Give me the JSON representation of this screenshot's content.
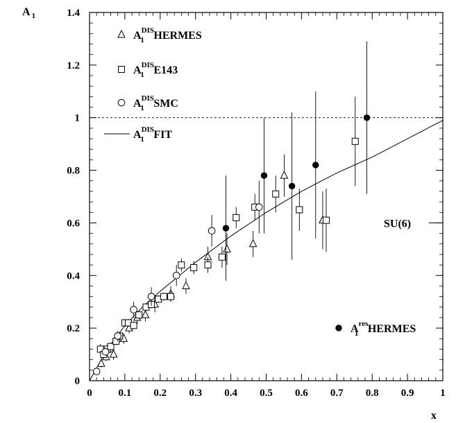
{
  "chart_data": {
    "type": "scatter",
    "title": "",
    "xlabel": "x",
    "ylabel": "A",
    "ylabel_sub": "1",
    "xlim": [
      0,
      1
    ],
    "ylim": [
      0,
      1.4
    ],
    "x_ticks": [
      0,
      0.1,
      0.2,
      0.3,
      0.4,
      0.5,
      0.6,
      0.7,
      0.8,
      0.9,
      1
    ],
    "x_tick_labels": [
      "0",
      "0.1",
      "0.2",
      "0.3",
      "0.4",
      "0.5",
      "0.6",
      "0.7",
      "0.8",
      "0.9",
      "1"
    ],
    "y_ticks": [
      0,
      0.2,
      0.4,
      0.6,
      0.8,
      1,
      1.2,
      1.4
    ],
    "y_tick_labels": [
      "0",
      "0.2",
      "0.4",
      "0.6",
      "0.8",
      "1",
      "1.2",
      "1.4"
    ],
    "reference_line": {
      "y": 1.0,
      "style": "dashed"
    },
    "annotation": {
      "text": "SU(6)",
      "y": 0.6
    },
    "legend": [
      {
        "series": "hermes_dis",
        "marker": "triangle",
        "main": "A",
        "sub": "1",
        "sup": "DIS",
        "name": "HERMES"
      },
      {
        "series": "e143",
        "marker": "square",
        "main": "A",
        "sub": "1",
        "sup": "DIS",
        "name": "E143"
      },
      {
        "series": "smc",
        "marker": "circle",
        "main": "A",
        "sub": "1",
        "sup": "DIS",
        "name": "SMC"
      },
      {
        "series": "fit",
        "marker": "line",
        "main": "A",
        "sub": "1",
        "sup": "DIS",
        "name": "FIT"
      },
      {
        "series": "hermes_res",
        "marker": "filled-circle",
        "main": "A",
        "sub": "1",
        "sup": "res",
        "name": "HERMES"
      }
    ],
    "series": [
      {
        "id": "hermes_dis",
        "marker": "triangle",
        "points": [
          {
            "x": 0.033,
            "y": 0.065,
            "err": 0.015
          },
          {
            "x": 0.047,
            "y": 0.09,
            "err": 0.015
          },
          {
            "x": 0.058,
            "y": 0.12,
            "err": 0.015
          },
          {
            "x": 0.068,
            "y": 0.1,
            "err": 0.02
          },
          {
            "x": 0.082,
            "y": 0.16,
            "err": 0.02
          },
          {
            "x": 0.097,
            "y": 0.16,
            "err": 0.02
          },
          {
            "x": 0.112,
            "y": 0.2,
            "err": 0.02
          },
          {
            "x": 0.135,
            "y": 0.24,
            "err": 0.025
          },
          {
            "x": 0.158,
            "y": 0.25,
            "err": 0.025
          },
          {
            "x": 0.185,
            "y": 0.29,
            "err": 0.03
          },
          {
            "x": 0.23,
            "y": 0.33,
            "err": 0.03
          },
          {
            "x": 0.273,
            "y": 0.36,
            "err": 0.03
          },
          {
            "x": 0.335,
            "y": 0.47,
            "err": 0.04
          },
          {
            "x": 0.389,
            "y": 0.5,
            "err": 0.06
          },
          {
            "x": 0.463,
            "y": 0.52,
            "err": 0.05
          },
          {
            "x": 0.551,
            "y": 0.78,
            "err": 0.08
          },
          {
            "x": 0.66,
            "y": 0.61,
            "err": 0.11
          }
        ]
      },
      {
        "id": "e143",
        "marker": "square",
        "points": [
          {
            "x": 0.031,
            "y": 0.12,
            "err": 0.02
          },
          {
            "x": 0.04,
            "y": 0.1,
            "err": 0.015
          },
          {
            "x": 0.05,
            "y": 0.12,
            "err": 0.015
          },
          {
            "x": 0.06,
            "y": 0.13,
            "err": 0.015
          },
          {
            "x": 0.075,
            "y": 0.15,
            "err": 0.015
          },
          {
            "x": 0.085,
            "y": 0.17,
            "err": 0.015
          },
          {
            "x": 0.1,
            "y": 0.22,
            "err": 0.015
          },
          {
            "x": 0.11,
            "y": 0.22,
            "err": 0.015
          },
          {
            "x": 0.125,
            "y": 0.21,
            "err": 0.015
          },
          {
            "x": 0.14,
            "y": 0.25,
            "err": 0.015
          },
          {
            "x": 0.16,
            "y": 0.28,
            "err": 0.015
          },
          {
            "x": 0.175,
            "y": 0.29,
            "err": 0.015
          },
          {
            "x": 0.195,
            "y": 0.31,
            "err": 0.015
          },
          {
            "x": 0.21,
            "y": 0.32,
            "err": 0.015
          },
          {
            "x": 0.23,
            "y": 0.32,
            "err": 0.02
          },
          {
            "x": 0.26,
            "y": 0.44,
            "err": 0.025
          },
          {
            "x": 0.295,
            "y": 0.43,
            "err": 0.025
          },
          {
            "x": 0.335,
            "y": 0.44,
            "err": 0.03
          },
          {
            "x": 0.375,
            "y": 0.47,
            "err": 0.04
          },
          {
            "x": 0.415,
            "y": 0.62,
            "err": 0.04
          },
          {
            "x": 0.468,
            "y": 0.66,
            "err": 0.05
          },
          {
            "x": 0.527,
            "y": 0.71,
            "err": 0.07
          },
          {
            "x": 0.594,
            "y": 0.65,
            "err": 0.08
          },
          {
            "x": 0.67,
            "y": 0.61,
            "err": 0.12
          },
          {
            "x": 0.752,
            "y": 0.91,
            "err": 0.17
          }
        ]
      },
      {
        "id": "smc",
        "marker": "circle",
        "points": [
          {
            "x": 0.02,
            "y": 0.035,
            "err": 0.01
          },
          {
            "x": 0.045,
            "y": 0.11,
            "err": 0.015
          },
          {
            "x": 0.08,
            "y": 0.17,
            "err": 0.02
          },
          {
            "x": 0.125,
            "y": 0.27,
            "err": 0.03
          },
          {
            "x": 0.175,
            "y": 0.32,
            "err": 0.035
          },
          {
            "x": 0.246,
            "y": 0.4,
            "err": 0.04
          },
          {
            "x": 0.346,
            "y": 0.57,
            "err": 0.06
          },
          {
            "x": 0.48,
            "y": 0.66,
            "err": 0.1
          }
        ]
      },
      {
        "id": "hermes_res",
        "marker": "filled-circle",
        "points": [
          {
            "x": 0.386,
            "y": 0.58,
            "err": 0.2
          },
          {
            "x": 0.494,
            "y": 0.78,
            "err": 0.22
          },
          {
            "x": 0.573,
            "y": 0.74,
            "err": 0.28
          },
          {
            "x": 0.64,
            "y": 0.82,
            "err": 0.28
          },
          {
            "x": 0.785,
            "y": 1.0,
            "err": 0.29
          }
        ]
      },
      {
        "id": "fit",
        "marker": "line",
        "points": [
          {
            "x": 0.0,
            "y": 0.0
          },
          {
            "x": 0.05,
            "y": 0.12
          },
          {
            "x": 0.1,
            "y": 0.21
          },
          {
            "x": 0.15,
            "y": 0.28
          },
          {
            "x": 0.2,
            "y": 0.34
          },
          {
            "x": 0.3,
            "y": 0.45
          },
          {
            "x": 0.4,
            "y": 0.55
          },
          {
            "x": 0.5,
            "y": 0.64
          },
          {
            "x": 0.6,
            "y": 0.72
          },
          {
            "x": 0.7,
            "y": 0.79
          },
          {
            "x": 0.8,
            "y": 0.85
          },
          {
            "x": 0.9,
            "y": 0.92
          },
          {
            "x": 1.0,
            "y": 0.99
          }
        ]
      }
    ]
  }
}
